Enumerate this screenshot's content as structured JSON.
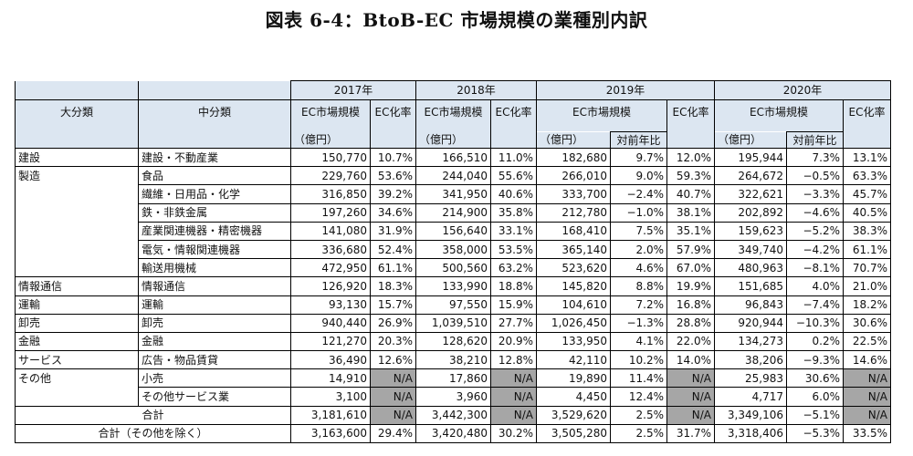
{
  "title": "図表 6-4：BtoB-EC 市場規模の業種別内訳",
  "headers": {
    "major": "大分類",
    "minor": "中分類",
    "years": [
      "2017年",
      "2018年",
      "2019年",
      "2020年"
    ],
    "ec_size": "EC市場規模",
    "ec_rate": "EC化率",
    "unit": "（億円）",
    "yoy": "対前年比"
  },
  "rows": [
    {
      "major": "建設",
      "minor": "建設・不動産業",
      "v2017": "150,770",
      "r2017": "10.7%",
      "v2018": "166,510",
      "r2018": "11.0%",
      "v2019": "182,680",
      "y2019": "9.7%",
      "r2019": "12.0%",
      "v2020": "195,944",
      "y2020": "7.3%",
      "r2020": "13.1%"
    },
    {
      "major": "製造",
      "minor": "食品",
      "v2017": "229,760",
      "r2017": "53.6%",
      "v2018": "244,040",
      "r2018": "55.6%",
      "v2019": "266,010",
      "y2019": "9.0%",
      "r2019": "59.3%",
      "v2020": "264,672",
      "y2020": "−0.5%",
      "r2020": "63.3%"
    },
    {
      "major": "",
      "minor": "繊維・日用品・化学",
      "v2017": "316,850",
      "r2017": "39.2%",
      "v2018": "341,950",
      "r2018": "40.6%",
      "v2019": "333,700",
      "y2019": "−2.4%",
      "r2019": "40.7%",
      "v2020": "322,621",
      "y2020": "−3.3%",
      "r2020": "45.7%"
    },
    {
      "major": "",
      "minor": "鉄・非鉄金属",
      "v2017": "197,260",
      "r2017": "34.6%",
      "v2018": "214,900",
      "r2018": "35.8%",
      "v2019": "212,780",
      "y2019": "−1.0%",
      "r2019": "38.1%",
      "v2020": "202,892",
      "y2020": "−4.6%",
      "r2020": "40.5%"
    },
    {
      "major": "",
      "minor": "産業関連機器・精密機器",
      "v2017": "141,080",
      "r2017": "31.9%",
      "v2018": "156,640",
      "r2018": "33.1%",
      "v2019": "168,410",
      "y2019": "7.5%",
      "r2019": "35.1%",
      "v2020": "159,623",
      "y2020": "−5.2%",
      "r2020": "38.3%"
    },
    {
      "major": "",
      "minor": "電気・情報関連機器",
      "v2017": "336,680",
      "r2017": "52.4%",
      "v2018": "358,000",
      "r2018": "53.5%",
      "v2019": "365,140",
      "y2019": "2.0%",
      "r2019": "57.9%",
      "v2020": "349,740",
      "y2020": "−4.2%",
      "r2020": "61.1%"
    },
    {
      "major": "",
      "minor": "輸送用機械",
      "v2017": "472,950",
      "r2017": "61.1%",
      "v2018": "500,560",
      "r2018": "63.2%",
      "v2019": "523,620",
      "y2019": "4.6%",
      "r2019": "67.0%",
      "v2020": "480,963",
      "y2020": "−8.1%",
      "r2020": "70.7%"
    },
    {
      "major": "情報通信",
      "minor": "情報通信",
      "v2017": "126,920",
      "r2017": "18.3%",
      "v2018": "133,990",
      "r2018": "18.8%",
      "v2019": "145,820",
      "y2019": "8.8%",
      "r2019": "19.9%",
      "v2020": "151,685",
      "y2020": "4.0%",
      "r2020": "21.0%"
    },
    {
      "major": "運輸",
      "minor": "運輸",
      "v2017": "93,130",
      "r2017": "15.7%",
      "v2018": "97,550",
      "r2018": "15.9%",
      "v2019": "104,610",
      "y2019": "7.2%",
      "r2019": "16.8%",
      "v2020": "96,843",
      "y2020": "−7.4%",
      "r2020": "18.2%"
    },
    {
      "major": "卸売",
      "minor": "卸売",
      "v2017": "940,440",
      "r2017": "26.9%",
      "v2018": "1,039,510",
      "r2018": "27.7%",
      "v2019": "1,026,450",
      "y2019": "−1.3%",
      "r2019": "28.8%",
      "v2020": "920,944",
      "y2020": "−10.3%",
      "r2020": "30.6%"
    },
    {
      "major": "金融",
      "minor": "金融",
      "v2017": "121,270",
      "r2017": "20.3%",
      "v2018": "128,620",
      "r2018": "20.9%",
      "v2019": "133,950",
      "y2019": "4.1%",
      "r2019": "22.0%",
      "v2020": "134,273",
      "y2020": "0.2%",
      "r2020": "22.5%"
    },
    {
      "major": "サービス",
      "minor": "広告・物品賃貸",
      "v2017": "36,490",
      "r2017": "12.6%",
      "v2018": "38,210",
      "r2018": "12.8%",
      "v2019": "42,110",
      "y2019": "10.2%",
      "r2019": "14.0%",
      "v2020": "38,206",
      "y2020": "−9.3%",
      "r2020": "14.6%"
    },
    {
      "major": "その他",
      "minor": "小売",
      "v2017": "14,910",
      "r2017": "N/A",
      "v2018": "17,860",
      "r2018": "N/A",
      "v2019": "19,890",
      "y2019": "11.4%",
      "r2019": "N/A",
      "v2020": "25,983",
      "y2020": "30.6%",
      "r2020": "N/A"
    },
    {
      "major": "",
      "minor": "その他サービス業",
      "v2017": "3,100",
      "r2017": "N/A",
      "v2018": "3,960",
      "r2018": "N/A",
      "v2019": "4,450",
      "y2019": "12.4%",
      "r2019": "N/A",
      "v2020": "4,717",
      "y2020": "6.0%",
      "r2020": "N/A"
    }
  ],
  "totals": [
    {
      "label": "合計",
      "v2017": "3,181,610",
      "r2017": "N/A",
      "v2018": "3,442,300",
      "r2018": "N/A",
      "v2019": "3,529,620",
      "y2019": "2.5%",
      "r2019": "N/A",
      "v2020": "3,349,106",
      "y2020": "−5.1%",
      "r2020": "N/A"
    },
    {
      "label": "合計（その他を除く）",
      "v2017": "3,163,600",
      "r2017": "29.4%",
      "v2018": "3,420,480",
      "r2018": "30.2%",
      "v2019": "3,505,280",
      "y2019": "2.5%",
      "r2019": "31.7%",
      "v2020": "3,318,406",
      "y2020": "−5.3%",
      "r2020": "33.5%"
    }
  ]
}
